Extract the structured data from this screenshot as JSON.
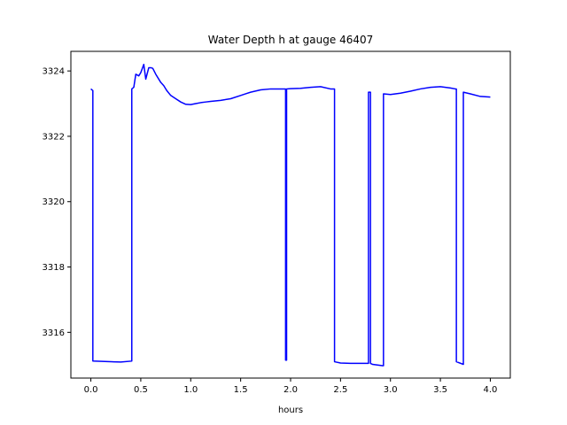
{
  "chart_data": {
    "type": "line",
    "title": "Water Depth h at gauge 46407",
    "xlabel": "hours",
    "ylabel": "",
    "xlim": [
      -0.2,
      4.2
    ],
    "ylim": [
      3314.6,
      3324.6
    ],
    "xticks": [
      0.0,
      0.5,
      1.0,
      1.5,
      2.0,
      2.5,
      3.0,
      3.5,
      4.0
    ],
    "xtick_labels": [
      "0.0",
      "0.5",
      "1.0",
      "1.5",
      "2.0",
      "2.5",
      "3.0",
      "3.5",
      "4.0"
    ],
    "yticks": [
      3316,
      3318,
      3320,
      3322,
      3324
    ],
    "ytick_labels": [
      "3316",
      "3318",
      "3320",
      "3322",
      "3324"
    ],
    "grid": false,
    "series": [
      {
        "color": "#0000ff",
        "x": [
          0.0,
          0.02,
          0.02,
          0.2,
          0.3,
          0.41,
          0.41,
          0.43,
          0.45,
          0.48,
          0.5,
          0.53,
          0.55,
          0.58,
          0.6,
          0.62,
          0.65,
          0.7,
          0.73,
          0.76,
          0.8,
          0.85,
          0.9,
          0.95,
          1.0,
          1.05,
          1.1,
          1.15,
          1.2,
          1.3,
          1.4,
          1.5,
          1.55,
          1.6,
          1.7,
          1.8,
          1.9,
          1.95,
          1.95,
          1.96,
          1.96,
          2.0,
          2.1,
          2.2,
          2.3,
          2.4,
          2.44,
          2.44,
          2.5,
          2.6,
          2.7,
          2.78,
          2.78,
          2.8,
          2.8,
          2.82,
          2.92,
          2.93,
          2.93,
          3.0,
          3.1,
          3.2,
          3.3,
          3.4,
          3.5,
          3.6,
          3.65,
          3.66,
          3.66,
          3.73,
          3.73,
          3.8,
          3.9,
          4.0
        ],
        "y": [
          3323.45,
          3323.4,
          3315.12,
          3315.1,
          3315.09,
          3315.12,
          3323.45,
          3323.5,
          3323.9,
          3323.85,
          3323.95,
          3324.2,
          3323.75,
          3324.1,
          3324.1,
          3324.08,
          3323.9,
          3323.65,
          3323.55,
          3323.4,
          3323.25,
          3323.15,
          3323.05,
          3322.98,
          3322.97,
          3323.0,
          3323.03,
          3323.05,
          3323.07,
          3323.1,
          3323.15,
          3323.25,
          3323.3,
          3323.35,
          3323.42,
          3323.45,
          3323.45,
          3323.45,
          3315.15,
          3315.15,
          3323.45,
          3323.46,
          3323.47,
          3323.5,
          3323.52,
          3323.45,
          3323.45,
          3315.1,
          3315.06,
          3315.05,
          3315.05,
          3315.05,
          3323.35,
          3323.35,
          3315.05,
          3315.02,
          3314.98,
          3314.98,
          3323.3,
          3323.28,
          3323.32,
          3323.38,
          3323.45,
          3323.5,
          3323.52,
          3323.48,
          3323.45,
          3323.45,
          3315.1,
          3315.02,
          3323.35,
          3323.3,
          3323.22,
          3323.2
        ]
      }
    ]
  }
}
